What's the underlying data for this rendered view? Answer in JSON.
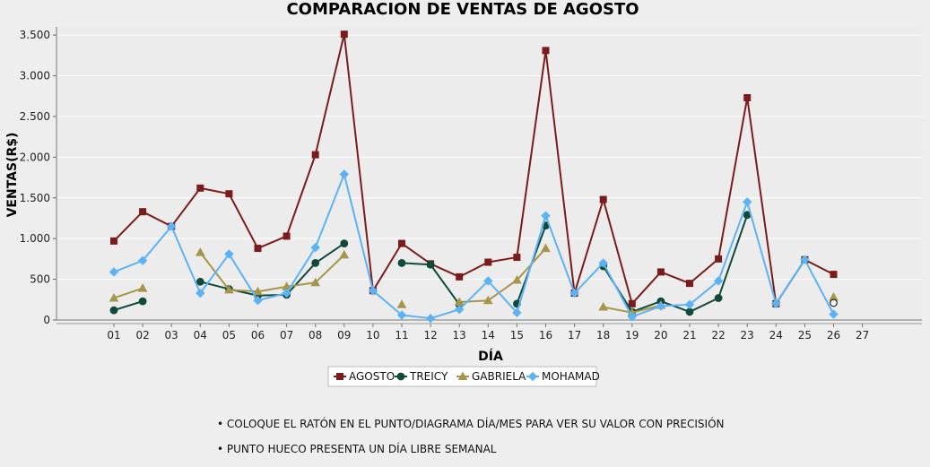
{
  "chart_data": {
    "type": "line",
    "title": "COMPARACION DE VENTAS DE AGOSTO",
    "xlabel": "DÍA",
    "ylabel": "VENTAS(R$)",
    "ylim": [
      0,
      3600
    ],
    "yticks": [
      0,
      500,
      1000,
      1500,
      2000,
      2500,
      3000,
      3500
    ],
    "ytick_labels": [
      "0",
      "500",
      "1.000",
      "1.500",
      "2.000",
      "2.500",
      "3.000",
      "3.500"
    ],
    "categories": [
      "01",
      "02",
      "03",
      "04",
      "05",
      "06",
      "07",
      "08",
      "09",
      "10",
      "11",
      "12",
      "13",
      "14",
      "15",
      "16",
      "17",
      "18",
      "19",
      "20",
      "21",
      "22",
      "23",
      "24",
      "25",
      "26",
      "27"
    ],
    "legend_position": "bottom",
    "grid": true,
    "series": [
      {
        "name": "AGOSTO",
        "color": "#7a1c1c",
        "marker": "square",
        "values": [
          970,
          1330,
          1150,
          1620,
          1550,
          880,
          1030,
          2030,
          3510,
          360,
          940,
          690,
          530,
          710,
          770,
          3310,
          330,
          1480,
          200,
          590,
          450,
          750,
          2730,
          200,
          740,
          560,
          null
        ]
      },
      {
        "name": "TREICY",
        "color": "#0f4a3a",
        "marker": "circle",
        "values": [
          120,
          230,
          null,
          470,
          380,
          300,
          310,
          700,
          940,
          null,
          700,
          680,
          190,
          null,
          200,
          1160,
          null,
          660,
          100,
          230,
          100,
          270,
          1290,
          null,
          null,
          null,
          null
        ]
      },
      {
        "name": "GABRIELA",
        "color": "#a6964a",
        "marker": "triangle",
        "values": [
          270,
          390,
          null,
          830,
          370,
          350,
          410,
          460,
          800,
          null,
          190,
          null,
          220,
          240,
          490,
          880,
          null,
          160,
          90,
          180,
          null,
          null,
          null,
          null,
          null,
          280,
          null
        ]
      },
      {
        "name": "MOHAMAD",
        "color": "#5cb3f3",
        "marker": "diamond",
        "values": [
          590,
          730,
          1150,
          330,
          810,
          240,
          330,
          890,
          1790,
          360,
          60,
          20,
          130,
          480,
          90,
          1280,
          330,
          700,
          40,
          170,
          190,
          480,
          1450,
          200,
          740,
          70,
          null
        ]
      }
    ],
    "hollow_points": [
      {
        "series": "TREICY",
        "x": "26",
        "y": 210
      }
    ]
  },
  "notes": [
    "• COLOQUE EL RATÓN EN EL PUNTO/DIAGRAMA DÍA/MES PARA VER SU VALOR CON PRECISIÓN",
    "• PUNTO HUECO PRESENTA UN DÍA LIBRE SEMANAL"
  ]
}
